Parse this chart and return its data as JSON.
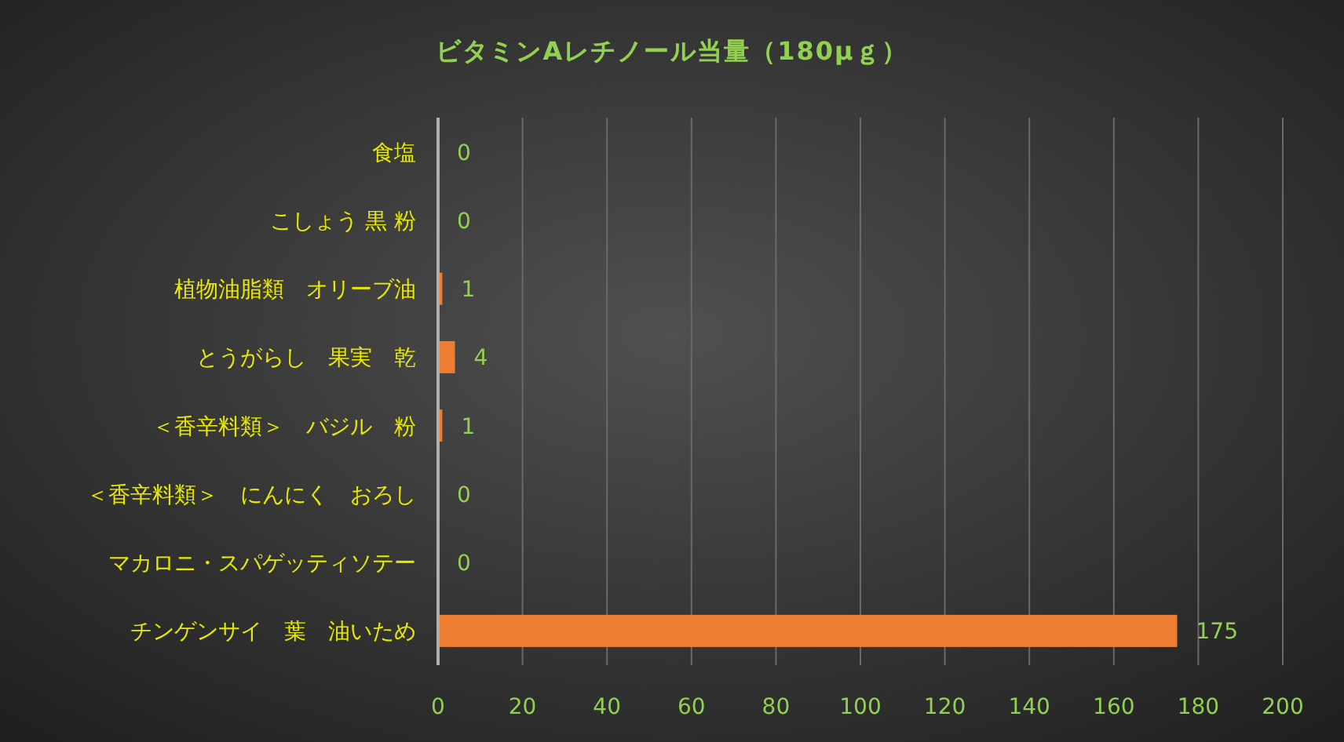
{
  "chart_data": {
    "type": "bar",
    "orientation": "horizontal",
    "title": "ビタミンAレチノール当量（180μｇ）",
    "categories": [
      "食塩",
      "こしょう 黒 粉",
      "植物油脂類　オリーブ油",
      "とうがらし　果実　乾",
      "＜香辛料類＞　バジル　粉",
      "＜香辛料類＞　にんにく　おろし",
      "マカロニ・スパゲッティソテー",
      "チンゲンサイ　葉　油いため"
    ],
    "values": [
      0,
      0,
      1,
      4,
      1,
      0,
      0,
      175
    ],
    "color": "#ed7d31",
    "xlim": [
      0,
      200
    ],
    "xticks": [
      0,
      20,
      40,
      60,
      80,
      100,
      120,
      140,
      160,
      180,
      200
    ],
    "grid": "x",
    "data_labels": true
  }
}
